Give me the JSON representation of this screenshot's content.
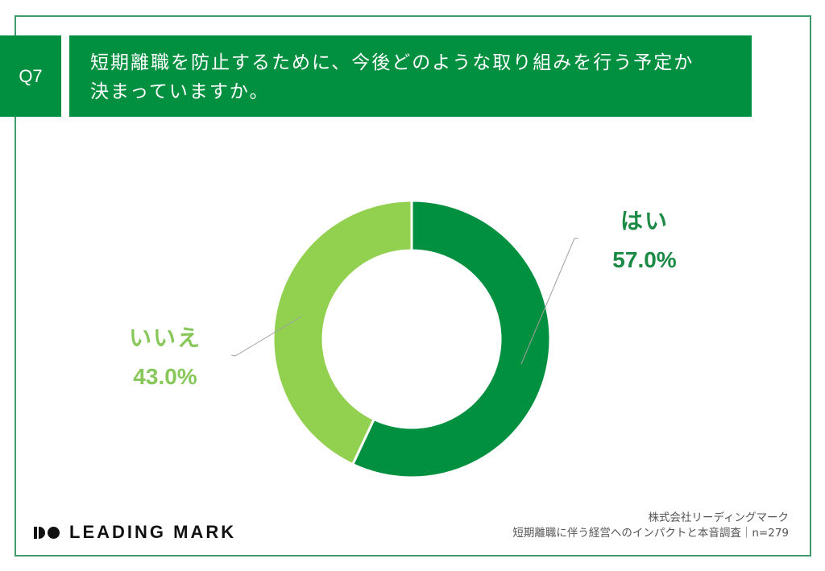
{
  "header": {
    "question_number": "Q7",
    "title_line1": "短期離職を防止するために、今後どのような取り組みを行う予定か",
    "title_line2": "決まっていますか。"
  },
  "colors": {
    "brand_green": "#00903f",
    "yes_color": "#00903f",
    "no_color": "#92d050",
    "frame_border": "#3f9a6c"
  },
  "chart_data": {
    "type": "pie",
    "variant": "donut",
    "title": "短期離職を防止するために、今後どのような取り組みを行う予定か決まっていますか。",
    "categories": [
      "はい",
      "いいえ"
    ],
    "values": [
      57.0,
      43.0
    ],
    "unit": "%",
    "labels": [
      {
        "name": "はい",
        "value_label": "57.0%",
        "color": "#00903f"
      },
      {
        "name": "いいえ",
        "value_label": "43.0%",
        "color": "#92d050"
      }
    ],
    "n": 279,
    "legend_position": "callout labels"
  },
  "labels": {
    "yes_name": "はい",
    "yes_pct": "57.0%",
    "no_name": "いいえ",
    "no_pct": "43.0%"
  },
  "footer": {
    "logo_text": "LEADING MARK",
    "company": "株式会社リーディングマーク",
    "survey": "短期離職に伴う経営へのインパクトと本音調査｜n=279"
  }
}
